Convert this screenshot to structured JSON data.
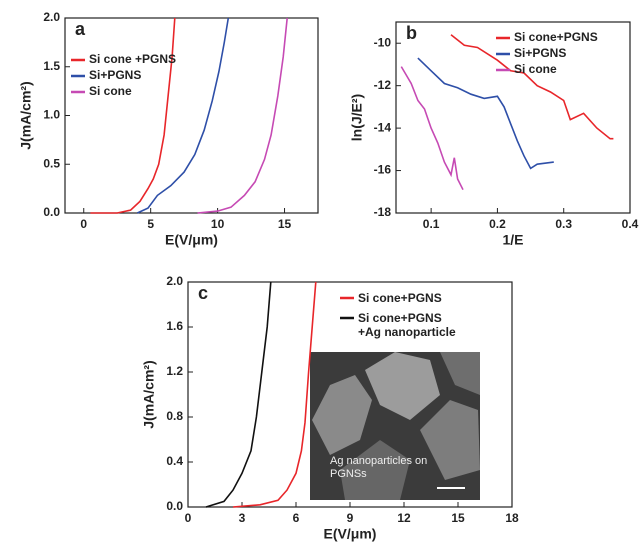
{
  "chart_data": [
    {
      "type": "line",
      "panel_label": "a",
      "xlabel": "E(V/μm)",
      "ylabel": "J(mA/cm²)",
      "xlim": [
        -1.4,
        17.5
      ],
      "xticks": [
        0,
        5,
        10,
        15
      ],
      "ylim": [
        0,
        2.0
      ],
      "yticks": [
        {
          "value": 0,
          "label": "0.0"
        },
        0.5,
        {
          "value": 1,
          "label": "1.0"
        },
        1.5,
        {
          "value": 2,
          "label": "2.0"
        }
      ],
      "legend": "upper left",
      "series": [
        {
          "name": "Si cone +PGNS",
          "color": "#e8262a",
          "x": [
            0.5,
            2.5,
            3.5,
            4.2,
            4.8,
            5.2,
            5.6,
            6.0,
            6.3,
            6.6,
            6.8
          ],
          "values": [
            0,
            0,
            0.03,
            0.12,
            0.25,
            0.35,
            0.5,
            0.8,
            1.2,
            1.6,
            2.0
          ]
        },
        {
          "name": "Si+PGNS",
          "color": "#2e4fa8",
          "x": [
            4.0,
            4.8,
            5.5,
            6.5,
            7.5,
            8.3,
            9.0,
            9.6,
            10.1,
            10.5,
            10.8
          ],
          "values": [
            0,
            0.05,
            0.18,
            0.28,
            0.42,
            0.6,
            0.85,
            1.15,
            1.45,
            1.75,
            2.0
          ]
        },
        {
          "name": "Si cone",
          "color": "#c64ab4",
          "x": [
            8.5,
            10.0,
            11.0,
            12.0,
            12.8,
            13.5,
            14.0,
            14.5,
            14.9,
            15.2
          ],
          "values": [
            0,
            0.02,
            0.06,
            0.18,
            0.32,
            0.55,
            0.8,
            1.2,
            1.6,
            2.0
          ]
        }
      ]
    },
    {
      "type": "line",
      "panel_label": "b",
      "xlabel": "1/E",
      "ylabel": "ln(J/E²)",
      "xlim": [
        0.047,
        0.4
      ],
      "xticks": [
        0.1,
        0.2,
        0.3,
        0.4
      ],
      "ylim": [
        -18,
        -9
      ],
      "yticks": [
        -10,
        -12,
        -14,
        -16,
        -18
      ],
      "legend": "upper right",
      "series": [
        {
          "name": "Si cone+PGNS",
          "color": "#e8262a",
          "x": [
            0.13,
            0.15,
            0.17,
            0.2,
            0.22,
            0.24,
            0.26,
            0.28,
            0.3,
            0.31,
            0.33,
            0.35,
            0.37,
            0.375
          ],
          "values": [
            -9.6,
            -10.1,
            -10.2,
            -10.8,
            -11.3,
            -11.4,
            -12.0,
            -12.3,
            -12.7,
            -13.6,
            -13.3,
            -14.0,
            -14.5,
            -14.5
          ]
        },
        {
          "name": "Si+PGNS",
          "color": "#2e4fa8",
          "x": [
            0.08,
            0.1,
            0.12,
            0.14,
            0.16,
            0.18,
            0.2,
            0.21,
            0.22,
            0.23,
            0.24,
            0.25,
            0.26,
            0.285
          ],
          "values": [
            -10.7,
            -11.3,
            -11.9,
            -12.1,
            -12.4,
            -12.6,
            -12.5,
            -13.0,
            -13.8,
            -14.6,
            -15.3,
            -15.9,
            -15.7,
            -15.6
          ]
        },
        {
          "name": "Si cone",
          "color": "#c64ab4",
          "x": [
            0.055,
            0.07,
            0.08,
            0.09,
            0.1,
            0.11,
            0.12,
            0.13,
            0.135,
            0.14,
            0.148
          ],
          "values": [
            -11.1,
            -11.9,
            -12.7,
            -13.1,
            -14.0,
            -14.7,
            -15.6,
            -16.2,
            -15.4,
            -16.4,
            -16.9
          ]
        }
      ]
    },
    {
      "type": "line",
      "panel_label": "c",
      "xlabel": "E(V/μm)",
      "ylabel": "J(mA/cm²)",
      "xlim": [
        0,
        18
      ],
      "xticks": [
        0,
        3,
        6,
        9,
        12,
        15,
        18
      ],
      "ylim": [
        0,
        2.0
      ],
      "yticks": [
        {
          "value": 0,
          "label": "0.0"
        },
        0.4,
        0.8,
        1.2,
        1.6,
        {
          "value": 2,
          "label": "2.0"
        }
      ],
      "legend": "upper right",
      "inset_caption": "Ag nanoparticles on PGNSs",
      "series": [
        {
          "name": "Si cone+PGNS",
          "color": "#e8262a",
          "x": [
            2.5,
            4.0,
            5.0,
            5.5,
            6.0,
            6.3,
            6.5,
            6.7,
            6.9,
            7.1
          ],
          "values": [
            0,
            0.02,
            0.06,
            0.15,
            0.3,
            0.5,
            0.75,
            1.2,
            1.6,
            2.0
          ]
        },
        {
          "name": "Si cone+PGNS\n+Ag nanoparticle",
          "color": "#111111",
          "x": [
            1.0,
            2.0,
            2.5,
            3.0,
            3.5,
            3.8,
            4.1,
            4.4,
            4.6
          ],
          "values": [
            0,
            0.05,
            0.15,
            0.3,
            0.5,
            0.8,
            1.2,
            1.6,
            2.0
          ]
        }
      ]
    }
  ]
}
